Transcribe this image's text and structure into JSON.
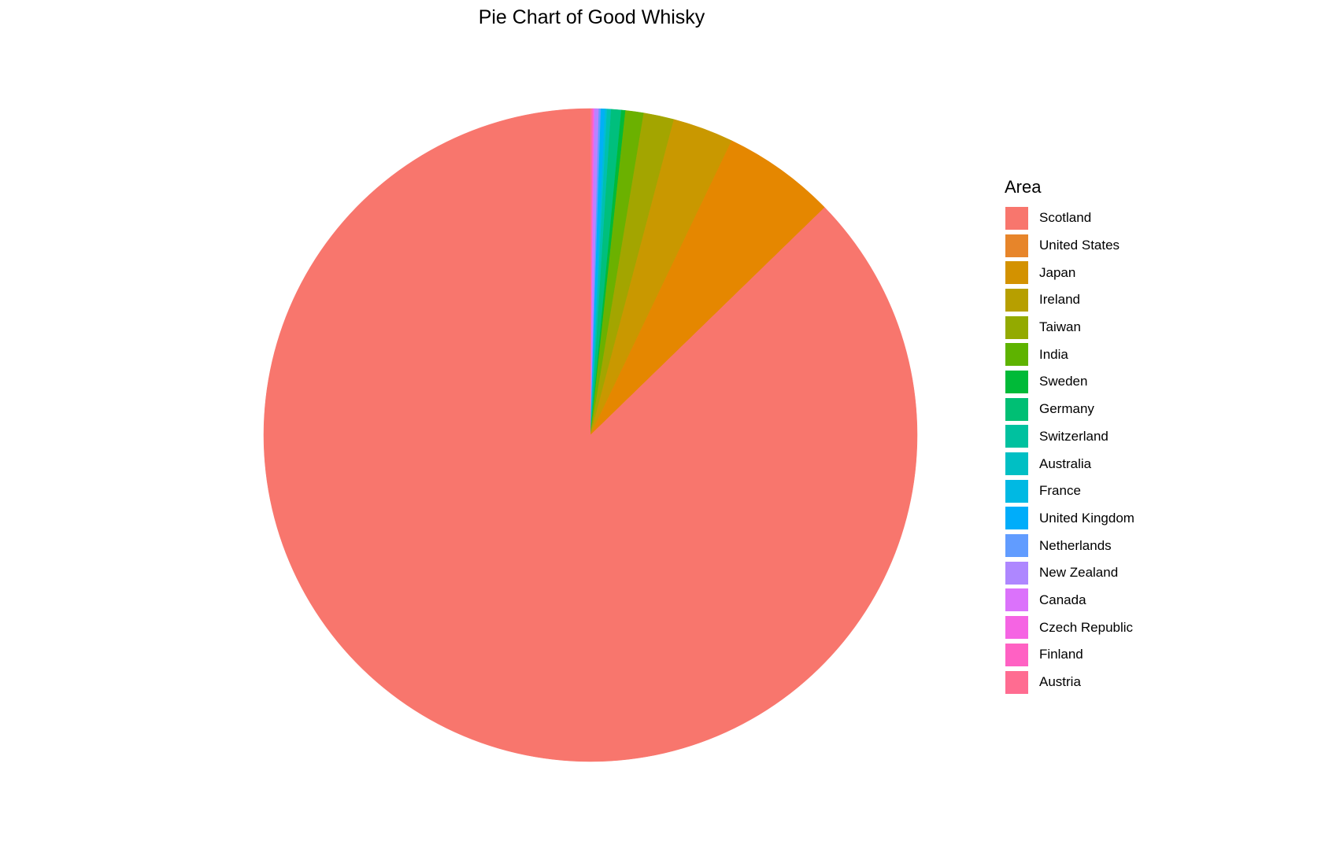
{
  "chart_data": {
    "type": "pie",
    "title": "Pie Chart of Good Whisky",
    "legend_title": "Area",
    "legend_position": "right",
    "slices": [
      {
        "label": "Scotland",
        "value": 87.2,
        "color": "#F8766D"
      },
      {
        "label": "United States",
        "value": 5.6,
        "color": "#E58700"
      },
      {
        "label": "Japan",
        "value": 3.0,
        "color": "#C99800"
      },
      {
        "label": "Ireland",
        "value": 1.5,
        "color": "#A3A500"
      },
      {
        "label": "Taiwan",
        "value": 0.9,
        "color": "#6BB100"
      },
      {
        "label": "India",
        "value": 0.2,
        "color": "#00BA38"
      },
      {
        "label": "Sweden",
        "value": 0.5,
        "color": "#00BF7D"
      },
      {
        "label": "Germany",
        "value": 0.2,
        "color": "#00C0AF"
      },
      {
        "label": "Switzerland",
        "value": 0.1,
        "color": "#00BCD8"
      },
      {
        "label": "Australia",
        "value": 0.2,
        "color": "#00B0F6"
      },
      {
        "label": "France",
        "value": 0.1,
        "color": "#619CFF"
      },
      {
        "label": "United Kingdom",
        "value": 0.2,
        "color": "#B983FF"
      },
      {
        "label": "Netherlands",
        "value": 0.05,
        "color": "#E76BF3"
      },
      {
        "label": "New Zealand",
        "value": 0.05,
        "color": "#FD61D1"
      },
      {
        "label": "Canada",
        "value": 0.05,
        "color": "#FF67A4"
      },
      {
        "label": "Czech Republic",
        "value": 0.02,
        "color": "#FF6C90"
      },
      {
        "label": "Finland",
        "value": 0.02,
        "color": "#FF6AAE"
      },
      {
        "label": "Austria",
        "value": 0.02,
        "color": "#FF6A98"
      }
    ],
    "legend_colors": [
      "#F8766D",
      "#E7852A",
      "#D39200",
      "#B79F00",
      "#93AA00",
      "#5EB300",
      "#00BA38",
      "#00BF74",
      "#00C19F",
      "#00BFC4",
      "#00B9E3",
      "#00ADFA",
      "#619CFF",
      "#AE87FF",
      "#DB72FB",
      "#F564E3",
      "#FF61C3",
      "#FF6C91"
    ]
  }
}
